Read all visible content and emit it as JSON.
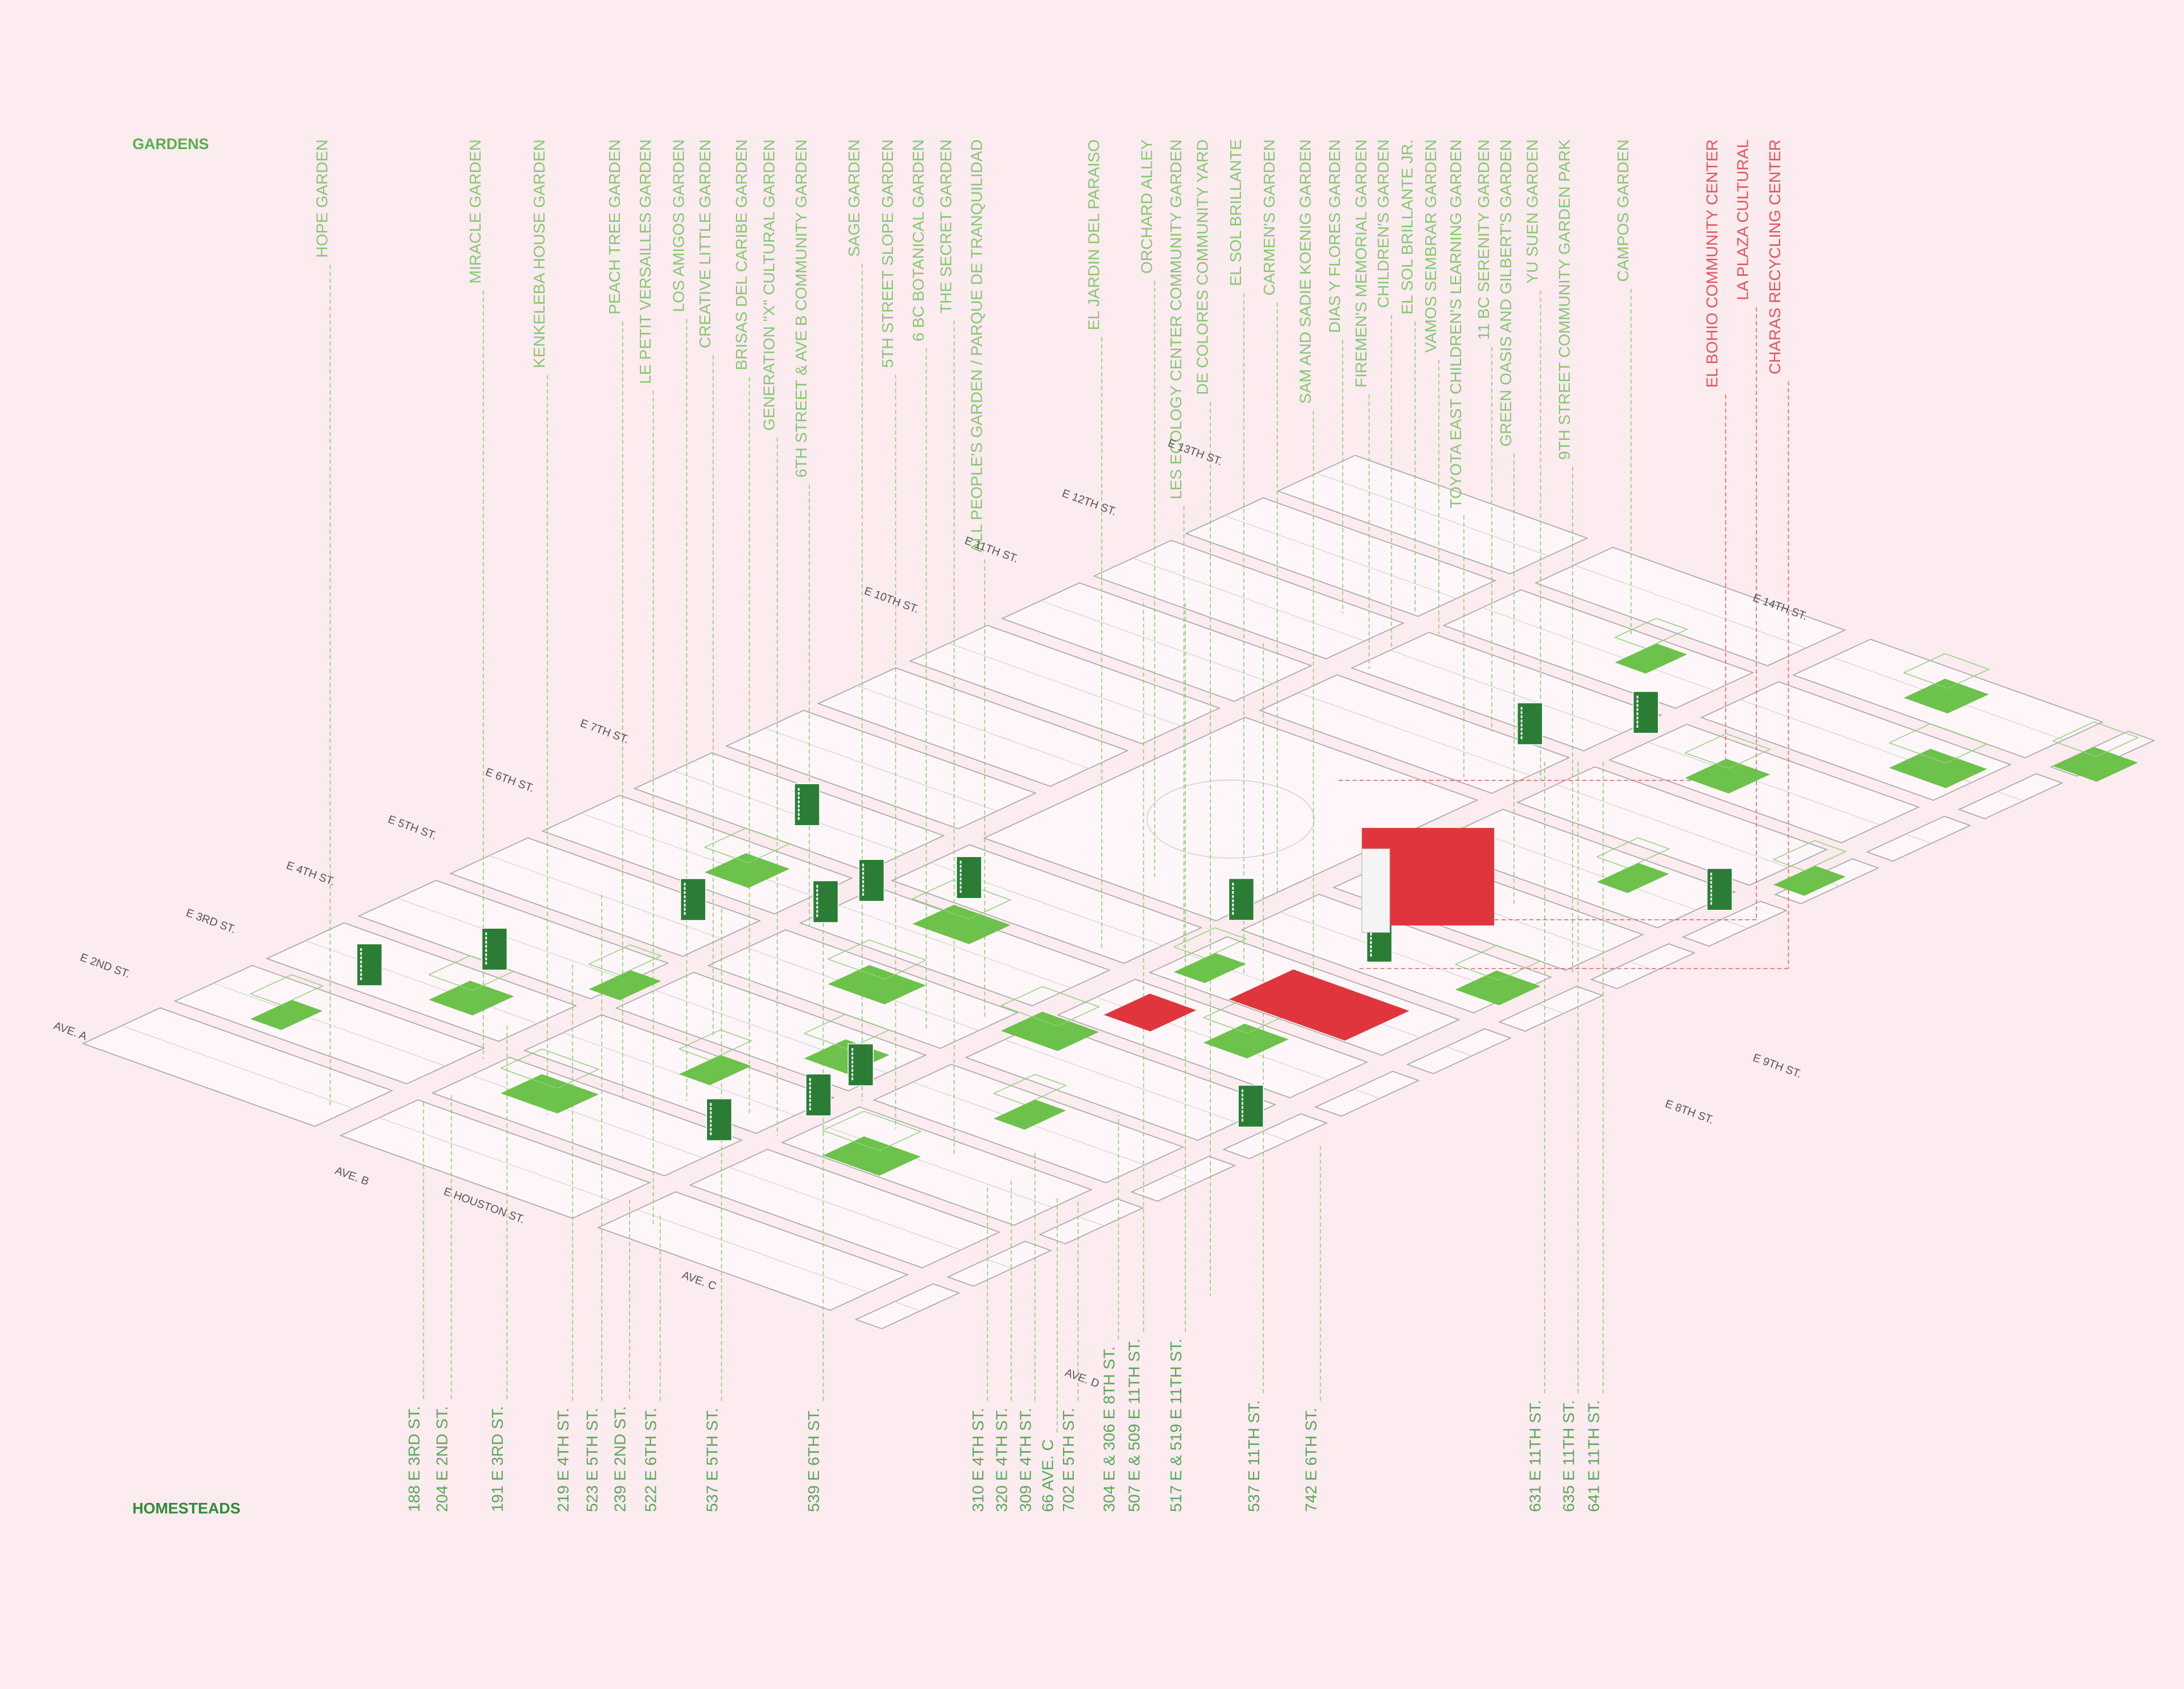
{
  "headings": {
    "gardens": "GARDENS",
    "homesteads": "HOMESTEADS"
  },
  "gardens": [
    "HOPE GARDEN",
    "MIRACLE GARDEN",
    "KENKELEBA HOUSE GARDEN",
    "PEACH TREE GARDEN",
    "LE PETIT VERSAILLES GARDEN",
    "LOS AMIGOS GARDEN",
    "CREATIVE LITTLE GARDEN",
    "BRISAS DEL CARIBE GARDEN",
    "GENERATION \"X\" CULTURAL GARDEN",
    "6TH STREET & AVE B COMMUNITY GARDEN",
    "SAGE GARDEN",
    "5TH STREET SLOPE GARDEN",
    "6 BC BOTANICAL GARDEN",
    "THE SECRET GARDEN",
    "ALL PEOPLE'S GARDEN / PARQUE DE TRANQUILIDAD",
    "EL JARDIN DEL PARAISO",
    "ORCHARD ALLEY",
    "LES ECOLOGY CENTER COMMUNITY GARDEN",
    "DE COLORES COMMUNITY YARD",
    "EL SOL BRILLANTE",
    "CARMEN'S GARDEN",
    "SAM AND SADIE KOENIG GARDEN",
    "DIAS Y FLORES GARDEN",
    "FIREMEN'S MEMORIAL GARDEN",
    "CHILDREN'S GARDEN",
    "EL SOL BRILLANTE JR.",
    "VAMOS SEMBRAR GARDEN",
    "TOYOTA EAST CHILDREN'S LEARNING GARDEN",
    "11 BC SERENITY GARDEN",
    "GREEN OASIS AND GILBERT'S GARDEN",
    "YU SUEN GARDEN",
    "9TH STREET COMMUNITY GARDEN PARK",
    "CAMPOS GARDEN"
  ],
  "community_centers": [
    "EL BOHIO COMMUNITY CENTER",
    "LA PLAZA CULTURAL",
    "CHARAS RECYCLING CENTER"
  ],
  "homesteads": [
    "188 E 3RD ST.",
    "204 E 2ND ST.",
    "191 E 3RD ST.",
    "219 E 4TH ST.",
    "523 E 5TH ST.",
    "239 E 2ND ST.",
    "522 E 6TH ST.",
    "537 E 5TH ST.",
    "539 E 6TH ST.",
    "310 E 4TH ST.",
    "320 E 4TH ST.",
    "309 E 4TH ST.",
    "66 AVE. C",
    "702 E 5TH ST.",
    "304 E & 306 E 8TH ST.",
    "507 E & 509 E 11TH ST.",
    "517 E & 519 E 11TH ST.",
    "537 E 11TH ST.",
    "742 E 6TH ST.",
    "631 E 11TH ST.",
    "635 E 11TH ST.",
    "641 E 11TH ST."
  ],
  "streets": [
    "AVE. A",
    "AVE. B",
    "E HOUSTON ST.",
    "AVE. C",
    "AVE. D",
    "E 2ND ST.",
    "E 3RD ST.",
    "E 4TH ST.",
    "E 5TH ST.",
    "E 6TH ST.",
    "E 7TH ST.",
    "E 10TH ST.",
    "E 11TH ST.",
    "E 12TH ST.",
    "E 13TH ST.",
    "E 14TH ST.",
    "E 9TH ST.",
    "E 8TH ST."
  ]
}
